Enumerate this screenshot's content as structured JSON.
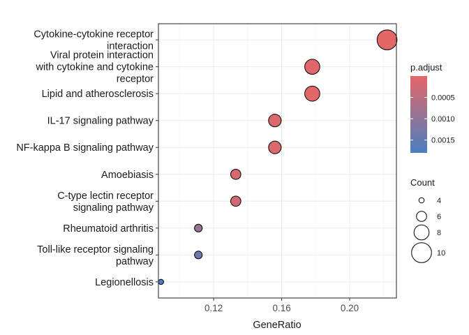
{
  "chart_data": {
    "type": "scatter",
    "xlabel": "GeneRatio",
    "xlim": [
      0.0875,
      0.2275
    ],
    "xticks": [
      0.12,
      0.16,
      0.2
    ],
    "xtick_labels": [
      "0.12",
      "0.16",
      "0.20"
    ],
    "grid": true,
    "points": [
      {
        "label_lines": [
          "Cytokine-cytokine receptor",
          "interaction"
        ],
        "x": 0.222,
        "count": 10,
        "padj": 0.0
      },
      {
        "label_lines": [
          "Viral protein interaction",
          "with cytokine and cytokine",
          "receptor"
        ],
        "x": 0.178,
        "count": 8,
        "padj": 5e-05
      },
      {
        "label_lines": [
          "Lipid and atherosclerosis"
        ],
        "x": 0.178,
        "count": 8,
        "padj": 5e-05
      },
      {
        "label_lines": [
          "IL-17 signaling pathway"
        ],
        "x": 0.156,
        "count": 7,
        "padj": 0.0001
      },
      {
        "label_lines": [
          "NF-kappa B signaling pathway"
        ],
        "x": 0.156,
        "count": 7,
        "padj": 0.0001
      },
      {
        "label_lines": [
          "Amoebiasis"
        ],
        "x": 0.133,
        "count": 6,
        "padj": 0.0002
      },
      {
        "label_lines": [
          "C-type lectin receptor",
          "signaling pathway"
        ],
        "x": 0.133,
        "count": 6,
        "padj": 0.0002
      },
      {
        "label_lines": [
          "Rheumatoid arthritis"
        ],
        "x": 0.111,
        "count": 5,
        "padj": 0.0009
      },
      {
        "label_lines": [
          "Toll-like receptor signaling",
          "pathway"
        ],
        "x": 0.111,
        "count": 5,
        "padj": 0.0014
      },
      {
        "label_lines": [
          "Legionellosis"
        ],
        "x": 0.089,
        "count": 4,
        "padj": 0.0018
      }
    ],
    "legend": {
      "placement": "right",
      "color": {
        "title": "p.adjust",
        "low_color": "#E46767",
        "high_color": "#4A7FC0",
        "range": [
          0.0,
          0.0018
        ],
        "breaks": [
          0.0005,
          0.001,
          0.0015
        ],
        "break_labels": [
          "0.0005",
          "0.0010",
          "0.0015"
        ]
      },
      "size": {
        "title": "Count",
        "breaks": [
          4,
          6,
          8,
          10
        ],
        "break_labels": [
          "4",
          "6",
          "8",
          "10"
        ]
      }
    }
  }
}
